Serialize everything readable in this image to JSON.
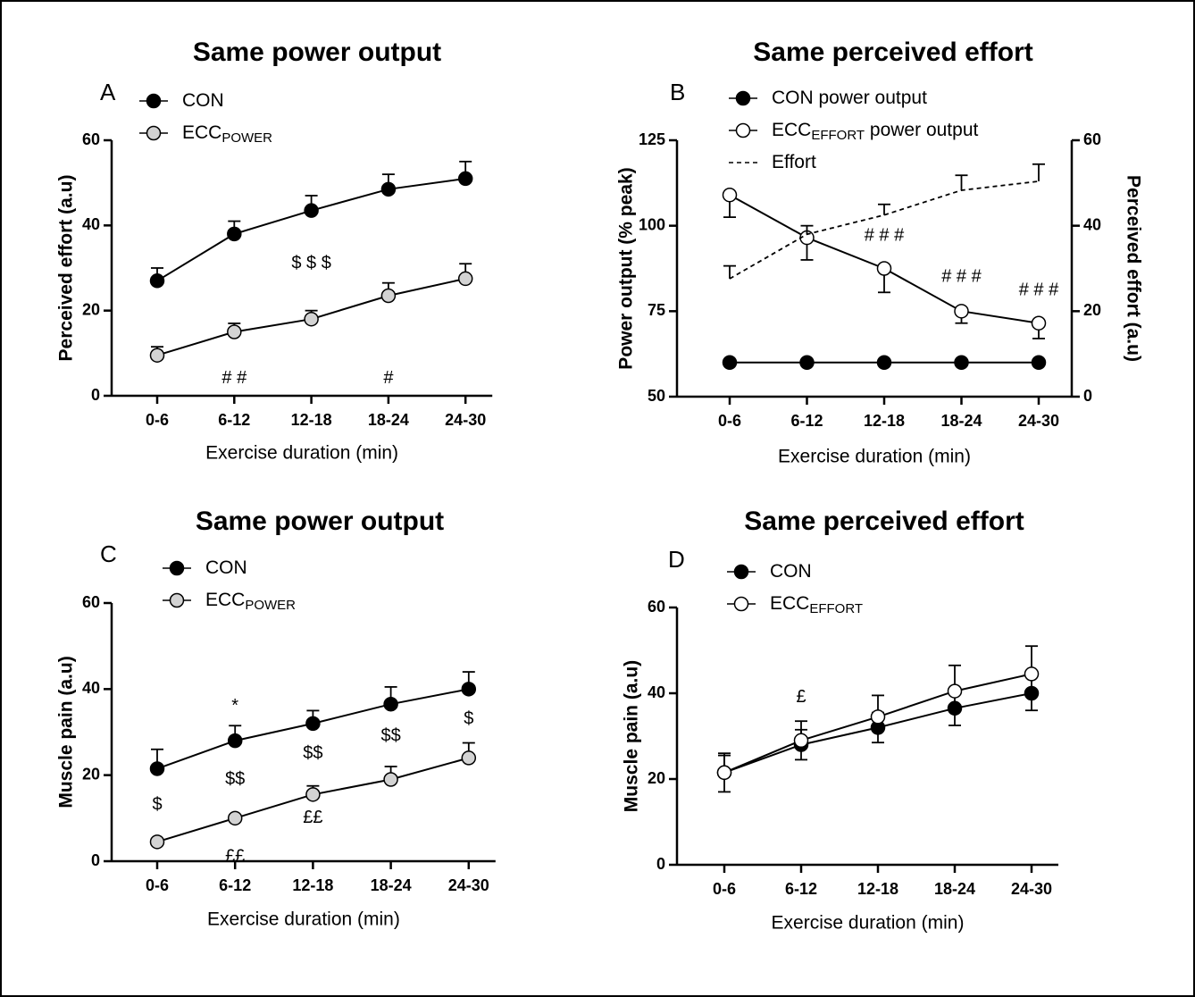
{
  "chart_data": [
    {
      "type": "line",
      "panel": "A",
      "title": "Same power output",
      "categories": [
        "0-6",
        "6-12",
        "12-18",
        "18-24",
        "24-30"
      ],
      "ylabel": "Perceived effort (a.u)",
      "xlabel": "Exercise duration (min)",
      "ylim": [
        0,
        60
      ],
      "yticks": [
        0,
        20,
        40,
        60
      ],
      "series": [
        {
          "name": "CON",
          "color": "#000000",
          "marker_fill": "#000000",
          "error_direction": "up",
          "values": [
            27,
            38,
            43.5,
            48.5,
            51
          ],
          "errors": [
            3,
            3,
            3.5,
            3.5,
            4
          ]
        },
        {
          "name": "ECC",
          "name_subscript": "POWER",
          "color": "#000000",
          "marker_fill": "#d3d3d3",
          "error_direction": "up",
          "values": [
            9.5,
            15,
            18,
            23.5,
            27.5
          ],
          "errors": [
            2,
            2,
            2,
            3,
            3.5
          ]
        }
      ],
      "annotations": [
        {
          "text": "$ $ $",
          "x": "12-18",
          "y": 31
        },
        {
          "text": "# #",
          "x": "6-12",
          "y": 4
        },
        {
          "text": "#",
          "x": "18-24",
          "y": 4
        }
      ]
    },
    {
      "type": "line",
      "panel": "B",
      "title": "Same perceived effort",
      "categories": [
        "0-6",
        "6-12",
        "12-18",
        "18-24",
        "24-30"
      ],
      "ylabel": "Power output (% peak)",
      "y2label": "Perceived effort (a.u)",
      "xlabel": "Exercise duration (min)",
      "ylim": [
        50,
        125
      ],
      "yticks": [
        50,
        75,
        100,
        125
      ],
      "y2lim": [
        0,
        60
      ],
      "y2ticks": [
        0,
        20,
        40,
        60
      ],
      "series": [
        {
          "name": "CON power output",
          "color": "#000000",
          "marker_fill": "#000000",
          "values": [
            60,
            60,
            60,
            60,
            60
          ]
        },
        {
          "name": "ECC",
          "name_subscript": "EFFORT",
          "name_suffix": " power output",
          "color": "#000000",
          "marker_fill": "#ffffff",
          "error_direction": "down",
          "values": [
            109,
            96.5,
            87.5,
            75,
            71.5
          ],
          "errors": [
            6.5,
            6.5,
            7,
            3.5,
            4.5
          ]
        },
        {
          "name": "Effort",
          "axis": "y2",
          "color": "#000000",
          "line_style": "dashed",
          "error_direction": "up",
          "values": [
            27.6,
            38,
            42.5,
            48.3,
            50.4
          ],
          "errors": [
            3,
            2,
            2.5,
            3.5,
            4
          ]
        }
      ],
      "annotations": [
        {
          "text": "# # #",
          "x": "12-18",
          "y": 97
        },
        {
          "text": "# # #",
          "x": "18-24",
          "y": 85
        },
        {
          "text": "# # #",
          "x": "24-30",
          "y": 81
        }
      ]
    },
    {
      "type": "line",
      "panel": "C",
      "title": "Same power output",
      "categories": [
        "0-6",
        "6-12",
        "12-18",
        "18-24",
        "24-30"
      ],
      "ylabel": "Muscle pain (a.u)",
      "xlabel": "Exercise duration (min)",
      "ylim": [
        0,
        60
      ],
      "yticks": [
        0,
        20,
        40,
        60
      ],
      "series": [
        {
          "name": "CON",
          "color": "#000000",
          "marker_fill": "#000000",
          "error_direction": "up",
          "values": [
            21.5,
            28,
            32,
            36.5,
            40
          ],
          "errors": [
            4.5,
            3.5,
            3,
            4,
            4
          ]
        },
        {
          "name": "ECC",
          "name_subscript": "POWER",
          "color": "#000000",
          "marker_fill": "#d3d3d3",
          "error_direction": "up",
          "values": [
            4.5,
            10,
            15.5,
            19,
            24
          ],
          "errors": [
            0,
            0,
            2,
            3,
            3.5
          ]
        }
      ],
      "annotations": [
        {
          "text": "*",
          "x": "6-12",
          "y": 36
        },
        {
          "text": "$",
          "x": "0-6",
          "y": 13
        },
        {
          "text": "$$",
          "x": "6-12",
          "y": 19
        },
        {
          "text": "$$",
          "x": "12-18",
          "y": 25
        },
        {
          "text": "$$",
          "x": "18-24",
          "y": 29
        },
        {
          "text": "$",
          "x": "24-30",
          "y": 33
        },
        {
          "text": "££",
          "x": "6-12",
          "y": 1
        },
        {
          "text": "££",
          "x": "12-18",
          "y": 10
        }
      ]
    },
    {
      "type": "line",
      "panel": "D",
      "title": "Same perceived effort",
      "categories": [
        "0-6",
        "6-12",
        "12-18",
        "18-24",
        "24-30"
      ],
      "ylabel": "Muscle pain (a.u)",
      "xlabel": "Exercise duration (min)",
      "ylim": [
        0,
        60
      ],
      "yticks": [
        0,
        20,
        40,
        60
      ],
      "series": [
        {
          "name": "CON",
          "color": "#000000",
          "marker_fill": "#000000",
          "error_direction": "both",
          "values": [
            21.5,
            28,
            32,
            36.5,
            40
          ],
          "errors": [
            4.5,
            3.5,
            3.5,
            4,
            4
          ]
        },
        {
          "name": "ECC",
          "name_subscript": "EFFORT",
          "color": "#000000",
          "marker_fill": "#ffffff",
          "error_direction": "up",
          "values": [
            21.5,
            29,
            34.5,
            40.5,
            44.5
          ],
          "errors": [
            4,
            4.5,
            5,
            6,
            6.5
          ]
        }
      ],
      "annotations": [
        {
          "text": "£",
          "x": "6-12",
          "y": 39
        }
      ]
    }
  ]
}
